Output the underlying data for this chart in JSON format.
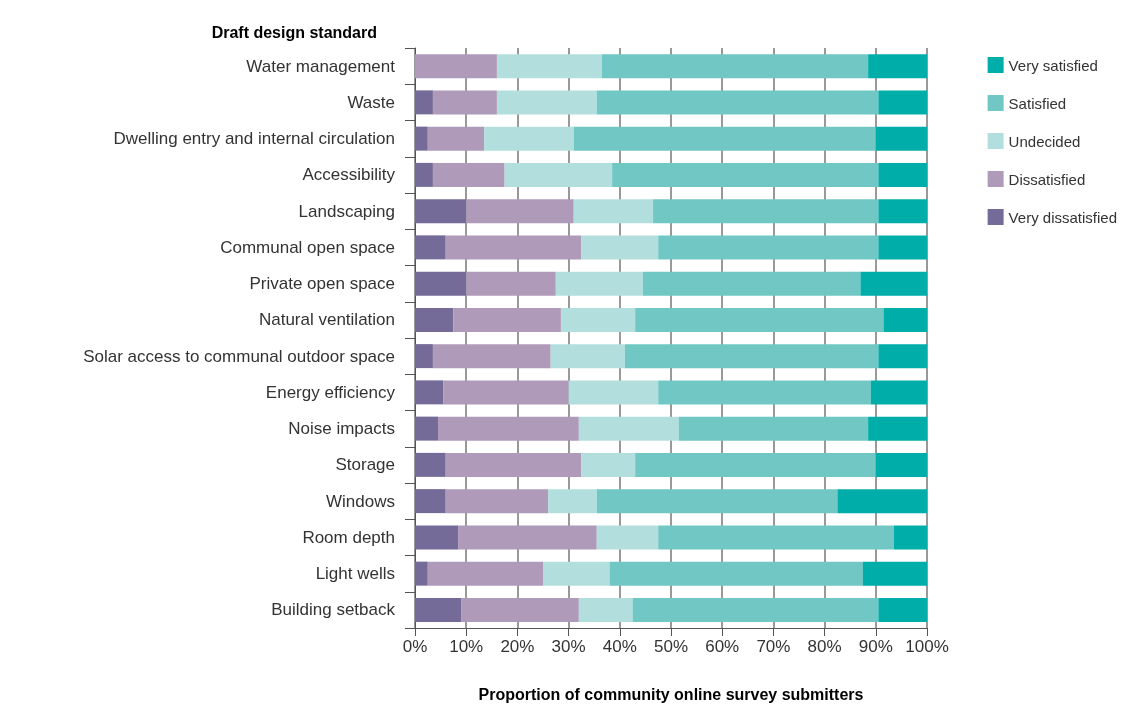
{
  "chart_data": {
    "type": "bar",
    "orientation": "horizontal",
    "stacked": true,
    "ylabel": "Draft design standard",
    "xlabel": "Proportion of community online survey submitters",
    "categories": [
      "Water management",
      "Waste",
      "Dwelling entry and internal circulation",
      "Accessibility",
      "Landscaping",
      "Communal open space",
      "Private open space",
      "Natural ventilation",
      "Solar access to communal outdoor space",
      "Energy efficiency",
      "Noise impacts",
      "Storage",
      "Windows",
      "Room depth",
      "Light wells",
      "Building setback"
    ],
    "series": [
      {
        "name": "Very dissatisfied",
        "color": "#756b98",
        "values": [
          0,
          3.5,
          2.5,
          3.5,
          10,
          6,
          10,
          7.5,
          3.5,
          5.5,
          4.5,
          6,
          6,
          8.5,
          2.5,
          9
        ]
      },
      {
        "name": "Dissatisfied",
        "color": "#b09aba",
        "values": [
          16,
          12.5,
          11,
          14,
          21,
          26.5,
          17.5,
          21,
          23,
          24.5,
          27.5,
          26.5,
          20,
          27,
          22.5,
          23
        ]
      },
      {
        "name": "Undecided",
        "color": "#b2dfdd",
        "values": [
          20.5,
          19.5,
          17.5,
          21,
          15.5,
          15,
          17,
          14.5,
          14.5,
          17.5,
          19.5,
          10.5,
          9.5,
          12,
          13,
          10.5
        ]
      },
      {
        "name": "Satisfied",
        "color": "#71c7c4",
        "values": [
          52,
          55,
          59,
          52,
          44,
          43,
          42.5,
          48.5,
          49.5,
          41.5,
          37,
          47,
          47,
          46,
          49.5,
          48
        ]
      },
      {
        "name": "Very satisfied",
        "color": "#00ada9",
        "values": [
          11.5,
          9.5,
          10,
          9.5,
          9.5,
          9.5,
          13,
          8.5,
          9.5,
          11,
          11.5,
          10,
          17.5,
          6.5,
          12.5,
          9.5
        ]
      }
    ],
    "xlim": [
      0,
      100
    ],
    "xticks": [
      {
        "value": 0,
        "label": "0%"
      },
      {
        "value": 10,
        "label": "10%"
      },
      {
        "value": 20,
        "label": "20%"
      },
      {
        "value": 30,
        "label": "30%"
      },
      {
        "value": 40,
        "label": "40%"
      },
      {
        "value": 50,
        "label": "50%"
      },
      {
        "value": 60,
        "label": "60%"
      },
      {
        "value": 70,
        "label": "70%"
      },
      {
        "value": 80,
        "label": "80%"
      },
      {
        "value": 90,
        "label": "90%"
      },
      {
        "value": 100,
        "label": "100%"
      }
    ],
    "grid": "x",
    "legend": "top right"
  }
}
